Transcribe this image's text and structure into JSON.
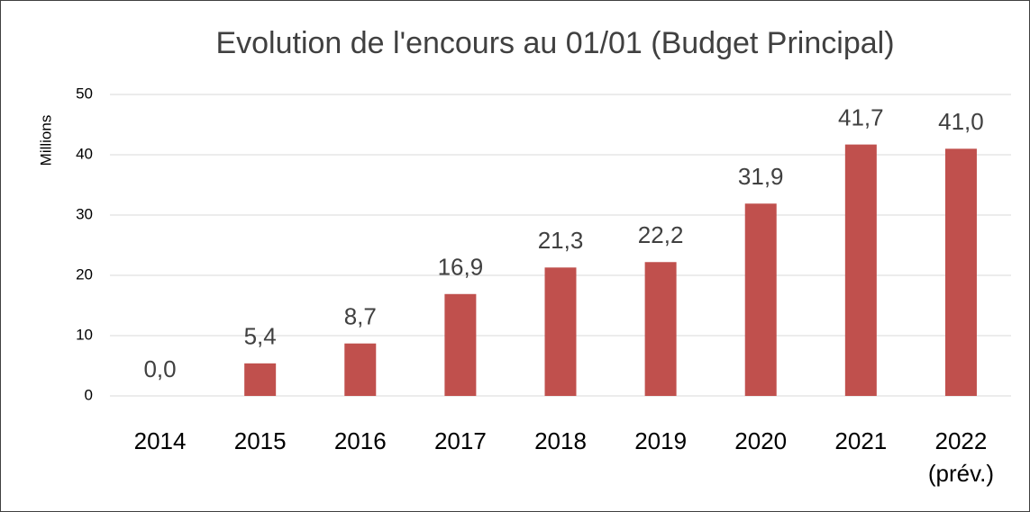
{
  "chart_data": {
    "type": "bar",
    "title": "Evolution de l'encours au 01/01 (Budget Principal)",
    "y_label": "Millions",
    "categories": [
      "2014",
      "2015",
      "2016",
      "2017",
      "2018",
      "2019",
      "2020",
      "2021",
      "2022 (prév.)"
    ],
    "values": [
      0,
      5.4,
      8.7,
      16.9,
      21.3,
      22.2,
      31.9,
      41.7,
      41.0
    ],
    "value_labels": [
      "0,0",
      "5,4",
      "8,7",
      "16,9",
      "21,3",
      "22,2",
      "31,9",
      "41,7",
      "41,0"
    ],
    "color": "#c0504d",
    "ylim": [
      0,
      50
    ],
    "yticks": [
      0,
      10,
      20,
      30,
      40,
      50
    ],
    "grid": true
  }
}
